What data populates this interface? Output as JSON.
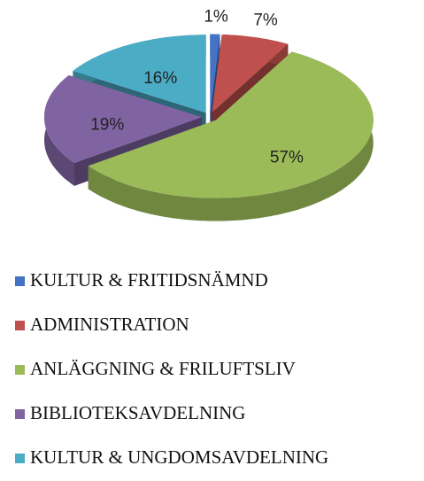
{
  "chart_data": {
    "type": "pie",
    "categories": [
      "KULTUR & FRITIDSNÄMND",
      "ADMINISTRATION",
      "ANLÄGGNING & FRILUFTSLIV",
      "BIBLIOTEKSAVDELNING",
      "KULTUR & UNGDOMSAVDELNING"
    ],
    "values": [
      1,
      7,
      57,
      19,
      16
    ],
    "value_labels": [
      "1%",
      "7%",
      "57%",
      "19%",
      "16%"
    ],
    "colors": [
      "#4472c4",
      "#c0504d",
      "#9bbb59",
      "#8064a2",
      "#4bacc6"
    ],
    "legend": "bottom"
  }
}
